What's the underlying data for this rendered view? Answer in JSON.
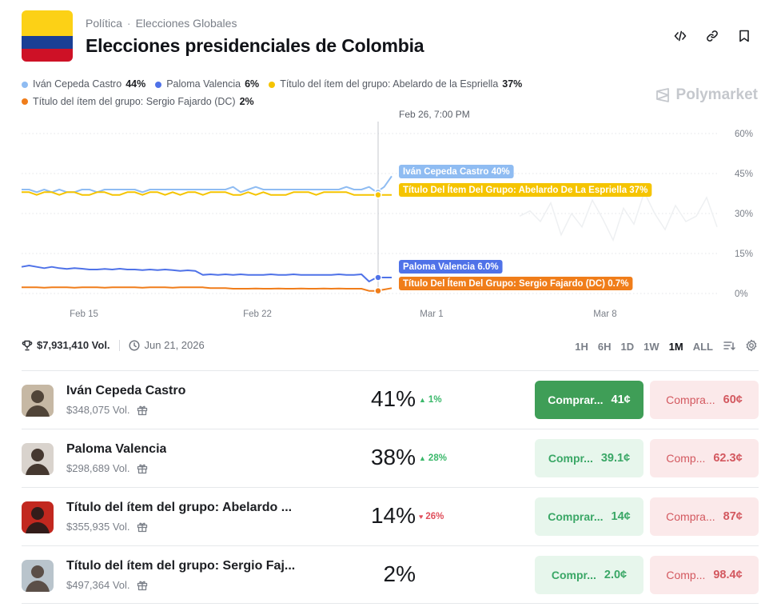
{
  "header": {
    "breadcrumb_category": "Política",
    "breadcrumb_sep": "·",
    "breadcrumb_sub": "Elecciones Globales",
    "title": "Elecciones presidenciales de Colombia",
    "actions": [
      "code-icon",
      "link-icon",
      "bookmark-icon"
    ]
  },
  "legend": [
    {
      "label": "Iván Cepeda Castro",
      "pct": "44%",
      "color": "#8fbcf2"
    },
    {
      "label": "Paloma Valencia",
      "pct": "6%",
      "color": "#4f72e8"
    },
    {
      "label": "Título del ítem del grupo: Abelardo de la Espriella",
      "pct": "37%",
      "color": "#f5c400"
    },
    {
      "label": "Título del ítem del grupo: Sergio Fajardo (DC)",
      "pct": "2%",
      "color": "#f07d1a"
    }
  ],
  "brand": "Polymarket",
  "chart_data": {
    "type": "line",
    "hover_label": "Feb 26, 7:00 PM",
    "x_ticks": [
      "Feb 15",
      "Feb 22",
      "Mar 1",
      "Mar 8"
    ],
    "y_ticks": [
      "60%",
      "45%",
      "30%",
      "15%",
      "0%"
    ],
    "ylim": [
      0,
      60
    ],
    "hover_labels": [
      {
        "text": "Iván Cepeda Castro 40%",
        "color": "#8fbcf2"
      },
      {
        "text": "Título Del Ítem Del Grupo: Abelardo De La Espriella 37%",
        "color": "#f5c400"
      },
      {
        "text": "Paloma Valencia 6.0%",
        "color": "#4f72e8"
      },
      {
        "text": "Título Del Ítem Del Grupo: Sergio Fajardo (DC) 0.7%",
        "color": "#f07d1a"
      }
    ],
    "series": [
      {
        "name": "Iván Cepeda Castro",
        "color": "#8fbcf2",
        "values": [
          39,
          39,
          38,
          39,
          38,
          39,
          38,
          38,
          39,
          39,
          38,
          39,
          39,
          39,
          39,
          39,
          38,
          39,
          39,
          39,
          39,
          39,
          39,
          39,
          39,
          39,
          39,
          39,
          40,
          38,
          39,
          40,
          39,
          39,
          39,
          39,
          39,
          39,
          39,
          39,
          39,
          39,
          39,
          40,
          39,
          39,
          40,
          38,
          40,
          44
        ]
      },
      {
        "name": "Título del ítem del grupo: Abelardo de la Espriella",
        "color": "#f5c400",
        "values": [
          38,
          38,
          37,
          38,
          38,
          37,
          38,
          38,
          37,
          37,
          38,
          38,
          37,
          37,
          38,
          38,
          37,
          38,
          38,
          37,
          38,
          37,
          38,
          38,
          37,
          38,
          38,
          38,
          37,
          37,
          38,
          37,
          38,
          37,
          37,
          37,
          38,
          38,
          38,
          37,
          38,
          38,
          38,
          38,
          37,
          37,
          37,
          37,
          37,
          37
        ]
      },
      {
        "name": "Paloma Valencia",
        "color": "#4f72e8",
        "values": [
          10,
          10.5,
          10,
          9.5,
          10,
          9.5,
          9.2,
          9.5,
          9.3,
          9,
          9,
          9.2,
          9,
          9.3,
          9,
          9,
          8.8,
          9,
          8.8,
          9,
          8.8,
          8.5,
          8.7,
          8.5,
          7,
          7.2,
          7,
          7.2,
          7,
          7.2,
          7,
          7,
          7,
          7.2,
          7,
          7,
          7.2,
          7,
          7,
          7,
          7,
          7,
          7.2,
          7,
          7,
          7.2,
          4.5,
          6,
          6,
          6
        ]
      },
      {
        "name": "Título del ítem del grupo: Sergio Fajardo (DC)",
        "color": "#f07d1a",
        "values": [
          2.3,
          2.3,
          2.3,
          2.2,
          2.3,
          2.3,
          2.3,
          2.2,
          2.3,
          2.3,
          2.3,
          2.2,
          2.3,
          2.3,
          2.3,
          2.3,
          2.2,
          2.3,
          2.3,
          2.3,
          2.2,
          2.3,
          2.3,
          2.3,
          2.3,
          2,
          2,
          2,
          1.8,
          1.8,
          1.8,
          1.9,
          1.8,
          1.8,
          1.9,
          1.8,
          1.8,
          1.9,
          1.8,
          1.8,
          1.9,
          1.8,
          1.9,
          1.8,
          1.8,
          1.8,
          1,
          1,
          1.5,
          2
        ]
      }
    ]
  },
  "meta": {
    "volume": "$7,931,410 Vol.",
    "date": "Jun 21, 2026"
  },
  "ranges": [
    {
      "label": "1H",
      "active": false
    },
    {
      "label": "6H",
      "active": false
    },
    {
      "label": "1D",
      "active": false
    },
    {
      "label": "1W",
      "active": false
    },
    {
      "label": "1M",
      "active": true
    },
    {
      "label": "ALL",
      "active": false
    }
  ],
  "outcomes": [
    {
      "name": "Iván Cepeda Castro",
      "volume": "$348,075 Vol.",
      "prob": "41%",
      "change": "1%",
      "dir": "up",
      "buy_label": "Comprar...",
      "buy_price": "41¢",
      "sell_label": "Compra...",
      "sell_price": "60¢",
      "buy_active": true,
      "avatar_bg": "#c6b8a4",
      "avatar_fg": "#3b2f26"
    },
    {
      "name": "Paloma Valencia",
      "volume": "$298,689 Vol.",
      "prob": "38%",
      "change": "28%",
      "dir": "up",
      "buy_label": "Compr...",
      "buy_price": "39.1¢",
      "sell_label": "Comp...",
      "sell_price": "62.3¢",
      "buy_active": false,
      "avatar_bg": "#d9d3cd",
      "avatar_fg": "#2a1c14"
    },
    {
      "name": "Título del ítem del grupo: Abelardo ...",
      "volume": "$355,935 Vol.",
      "prob": "14%",
      "change": "26%",
      "dir": "down",
      "buy_label": "Comprar...",
      "buy_price": "14¢",
      "sell_label": "Compra...",
      "sell_price": "87¢",
      "buy_active": false,
      "avatar_bg": "#c2281f",
      "avatar_fg": "#1a1a1a"
    },
    {
      "name": "Título del ítem del grupo: Sergio Faj...",
      "volume": "$497,364 Vol.",
      "prob": "2%",
      "change": "",
      "dir": "none",
      "buy_label": "Compr...",
      "buy_price": "2.0¢",
      "sell_label": "Comp...",
      "sell_price": "98.4¢",
      "buy_active": false,
      "avatar_bg": "#b9c4cc",
      "avatar_fg": "#4a3b30"
    }
  ]
}
